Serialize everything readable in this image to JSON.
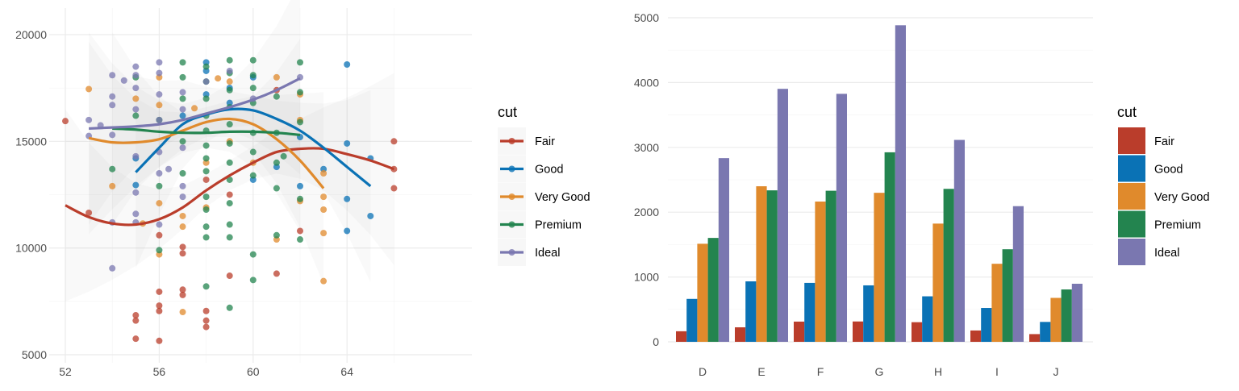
{
  "colors": {
    "Fair": "#BA3D2B",
    "Good": "#0A72B5",
    "Very Good": "#E08A2C",
    "Premium": "#23844F",
    "Ideal": "#7A77B0"
  },
  "chart_data": [
    {
      "type": "scatter",
      "title": "",
      "xlabel": "",
      "ylabel": "",
      "xlim": [
        51.6,
        66.4
      ],
      "ylim": [
        5000,
        21200
      ],
      "xticks": [
        "52",
        "56",
        "60",
        "64"
      ],
      "yticks": [
        "5000",
        "10000",
        "15000",
        "20000"
      ],
      "grid": true,
      "smooth": true,
      "confidence_band": true,
      "legend": {
        "title": "cut",
        "position": "right",
        "entries": [
          "Fair",
          "Good",
          "Very Good",
          "Premium",
          "Ideal"
        ]
      },
      "points": [
        [
          52,
          15950,
          "Fair"
        ],
        [
          53,
          11650,
          "Fair"
        ],
        [
          55,
          6850,
          "Fair"
        ],
        [
          55,
          6600,
          "Fair"
        ],
        [
          55,
          5750,
          "Fair"
        ],
        [
          56,
          10600,
          "Fair"
        ],
        [
          56,
          7950,
          "Fair"
        ],
        [
          56,
          7300,
          "Fair"
        ],
        [
          56,
          7050,
          "Fair"
        ],
        [
          56,
          5650,
          "Fair"
        ],
        [
          57,
          10050,
          "Fair"
        ],
        [
          57,
          9750,
          "Fair"
        ],
        [
          57,
          8050,
          "Fair"
        ],
        [
          57,
          7800,
          "Fair"
        ],
        [
          58,
          13200,
          "Fair"
        ],
        [
          58,
          7050,
          "Fair"
        ],
        [
          58,
          6600,
          "Fair"
        ],
        [
          58,
          6300,
          "Fair"
        ],
        [
          59,
          12500,
          "Fair"
        ],
        [
          59,
          8700,
          "Fair"
        ],
        [
          61,
          17400,
          "Fair"
        ],
        [
          61,
          8800,
          "Fair"
        ],
        [
          62,
          10800,
          "Fair"
        ],
        [
          66,
          15000,
          "Fair"
        ],
        [
          66,
          13700,
          "Fair"
        ],
        [
          66,
          12800,
          "Fair"
        ],
        [
          55,
          12950,
          "Good"
        ],
        [
          55,
          14200,
          "Good"
        ],
        [
          57,
          16200,
          "Good"
        ],
        [
          58,
          18700,
          "Good"
        ],
        [
          58,
          18300,
          "Good"
        ],
        [
          58,
          17200,
          "Good"
        ],
        [
          59,
          17500,
          "Good"
        ],
        [
          59,
          16800,
          "Good"
        ],
        [
          60,
          18000,
          "Good"
        ],
        [
          60,
          13200,
          "Good"
        ],
        [
          61,
          13800,
          "Good"
        ],
        [
          62,
          15200,
          "Good"
        ],
        [
          62,
          12900,
          "Good"
        ],
        [
          63,
          13700,
          "Good"
        ],
        [
          64,
          18600,
          "Good"
        ],
        [
          64,
          14900,
          "Good"
        ],
        [
          64,
          12300,
          "Good"
        ],
        [
          64,
          10800,
          "Good"
        ],
        [
          65,
          11500,
          "Good"
        ],
        [
          65,
          14200,
          "Good"
        ],
        [
          53,
          17450,
          "Very Good"
        ],
        [
          54,
          12900,
          "Very Good"
        ],
        [
          55,
          17000,
          "Very Good"
        ],
        [
          55.3,
          11150,
          "Very Good"
        ],
        [
          56,
          16700,
          "Very Good"
        ],
        [
          56,
          18000,
          "Very Good"
        ],
        [
          56,
          12100,
          "Very Good"
        ],
        [
          56,
          9700,
          "Very Good"
        ],
        [
          57,
          11500,
          "Very Good"
        ],
        [
          57,
          11000,
          "Very Good"
        ],
        [
          57,
          7000,
          "Very Good"
        ],
        [
          58,
          14000,
          "Very Good"
        ],
        [
          58,
          11900,
          "Very Good"
        ],
        [
          58.5,
          17950,
          "Very Good"
        ],
        [
          57.5,
          16550,
          "Very Good"
        ],
        [
          59,
          15000,
          "Very Good"
        ],
        [
          59,
          17800,
          "Very Good"
        ],
        [
          60,
          14000,
          "Very Good"
        ],
        [
          61,
          18000,
          "Very Good"
        ],
        [
          61,
          10400,
          "Very Good"
        ],
        [
          62,
          17200,
          "Very Good"
        ],
        [
          62,
          12200,
          "Very Good"
        ],
        [
          62,
          16000,
          "Very Good"
        ],
        [
          63,
          13500,
          "Very Good"
        ],
        [
          63,
          12400,
          "Very Good"
        ],
        [
          63,
          11800,
          "Very Good"
        ],
        [
          63,
          10700,
          "Very Good"
        ],
        [
          63,
          8450,
          "Very Good"
        ],
        [
          54,
          13700,
          "Premium"
        ],
        [
          55,
          16200,
          "Premium"
        ],
        [
          55,
          18000,
          "Premium"
        ],
        [
          56,
          12900,
          "Premium"
        ],
        [
          56,
          9900,
          "Premium"
        ],
        [
          56,
          16000,
          "Premium"
        ],
        [
          57,
          18700,
          "Premium"
        ],
        [
          57,
          18000,
          "Premium"
        ],
        [
          57,
          17000,
          "Premium"
        ],
        [
          57,
          15000,
          "Premium"
        ],
        [
          57,
          13500,
          "Premium"
        ],
        [
          58,
          18500,
          "Premium"
        ],
        [
          58,
          17800,
          "Premium"
        ],
        [
          58,
          17000,
          "Premium"
        ],
        [
          58,
          16200,
          "Premium"
        ],
        [
          58,
          15500,
          "Premium"
        ],
        [
          58,
          14800,
          "Premium"
        ],
        [
          58,
          14200,
          "Premium"
        ],
        [
          58,
          13600,
          "Premium"
        ],
        [
          58,
          12400,
          "Premium"
        ],
        [
          58,
          11800,
          "Premium"
        ],
        [
          58,
          11000,
          "Premium"
        ],
        [
          58,
          10500,
          "Premium"
        ],
        [
          58,
          8200,
          "Premium"
        ],
        [
          59,
          18800,
          "Premium"
        ],
        [
          59,
          18200,
          "Premium"
        ],
        [
          59,
          17400,
          "Premium"
        ],
        [
          59,
          16600,
          "Premium"
        ],
        [
          59,
          15800,
          "Premium"
        ],
        [
          59,
          14900,
          "Premium"
        ],
        [
          59,
          14000,
          "Premium"
        ],
        [
          59,
          13200,
          "Premium"
        ],
        [
          59,
          12100,
          "Premium"
        ],
        [
          59,
          11100,
          "Premium"
        ],
        [
          59,
          10500,
          "Premium"
        ],
        [
          59,
          7200,
          "Premium"
        ],
        [
          60,
          18800,
          "Premium"
        ],
        [
          60,
          18100,
          "Premium"
        ],
        [
          60,
          17500,
          "Premium"
        ],
        [
          60,
          16800,
          "Premium"
        ],
        [
          60,
          15400,
          "Premium"
        ],
        [
          60,
          14500,
          "Premium"
        ],
        [
          60,
          13400,
          "Premium"
        ],
        [
          60,
          9700,
          "Premium"
        ],
        [
          60,
          8500,
          "Premium"
        ],
        [
          61,
          17100,
          "Premium"
        ],
        [
          61,
          15400,
          "Premium"
        ],
        [
          61,
          14000,
          "Premium"
        ],
        [
          61,
          12800,
          "Premium"
        ],
        [
          61,
          10600,
          "Premium"
        ],
        [
          61.3,
          14300,
          "Premium"
        ],
        [
          62,
          18700,
          "Premium"
        ],
        [
          62,
          17300,
          "Premium"
        ],
        [
          62,
          15900,
          "Premium"
        ],
        [
          62,
          12300,
          "Premium"
        ],
        [
          62,
          10400,
          "Premium"
        ],
        [
          53,
          16000,
          "Ideal"
        ],
        [
          53,
          15250,
          "Ideal"
        ],
        [
          54,
          18100,
          "Ideal"
        ],
        [
          54,
          17100,
          "Ideal"
        ],
        [
          54,
          16700,
          "Ideal"
        ],
        [
          54,
          15300,
          "Ideal"
        ],
        [
          54,
          11200,
          "Ideal"
        ],
        [
          54,
          9050,
          "Ideal"
        ],
        [
          54.5,
          17850,
          "Ideal"
        ],
        [
          53.5,
          15750,
          "Ideal"
        ],
        [
          55,
          18500,
          "Ideal"
        ],
        [
          55,
          18100,
          "Ideal"
        ],
        [
          55,
          17500,
          "Ideal"
        ],
        [
          55,
          16500,
          "Ideal"
        ],
        [
          55,
          14300,
          "Ideal"
        ],
        [
          55,
          12600,
          "Ideal"
        ],
        [
          55,
          11600,
          "Ideal"
        ],
        [
          55,
          11200,
          "Ideal"
        ],
        [
          56,
          18700,
          "Ideal"
        ],
        [
          56,
          18200,
          "Ideal"
        ],
        [
          56,
          17200,
          "Ideal"
        ],
        [
          56,
          16000,
          "Ideal"
        ],
        [
          56,
          14500,
          "Ideal"
        ],
        [
          56,
          13500,
          "Ideal"
        ],
        [
          56,
          11100,
          "Ideal"
        ],
        [
          56.4,
          13700,
          "Ideal"
        ],
        [
          57,
          17300,
          "Ideal"
        ],
        [
          57,
          16500,
          "Ideal"
        ],
        [
          57,
          14700,
          "Ideal"
        ],
        [
          57,
          12900,
          "Ideal"
        ],
        [
          57,
          12400,
          "Ideal"
        ],
        [
          58,
          17800,
          "Ideal"
        ],
        [
          59,
          18300,
          "Ideal"
        ],
        [
          60,
          17000,
          "Ideal"
        ],
        [
          62,
          18000,
          "Ideal"
        ]
      ],
      "smooth_lines": {
        "Fair": [
          [
            52,
            12000
          ],
          [
            53,
            11450
          ],
          [
            54,
            11150
          ],
          [
            55,
            11100
          ],
          [
            56,
            11350
          ],
          [
            57,
            11900
          ],
          [
            58,
            12700
          ],
          [
            59,
            13400
          ],
          [
            60,
            14000
          ],
          [
            61,
            14500
          ],
          [
            62,
            14650
          ],
          [
            63,
            14650
          ],
          [
            64,
            14400
          ],
          [
            65,
            14100
          ],
          [
            66,
            13700
          ]
        ],
        "Good": [
          [
            55,
            13550
          ],
          [
            56,
            14700
          ],
          [
            57,
            15800
          ],
          [
            58,
            16250
          ],
          [
            59,
            16500
          ],
          [
            60,
            16450
          ],
          [
            61,
            16050
          ],
          [
            62,
            15500
          ],
          [
            63,
            14700
          ],
          [
            64,
            13800
          ],
          [
            65,
            12900
          ]
        ],
        "Very Good": [
          [
            53,
            15150
          ],
          [
            54,
            14950
          ],
          [
            55,
            14950
          ],
          [
            56,
            15100
          ],
          [
            57,
            15500
          ],
          [
            58,
            15900
          ],
          [
            59,
            16050
          ],
          [
            60,
            15800
          ],
          [
            61,
            15100
          ],
          [
            62,
            14100
          ],
          [
            63,
            12800
          ]
        ],
        "Premium": [
          [
            54,
            15600
          ],
          [
            55,
            15550
          ],
          [
            56,
            15450
          ],
          [
            57,
            15400
          ],
          [
            58,
            15400
          ],
          [
            59,
            15450
          ],
          [
            60,
            15450
          ],
          [
            61,
            15400
          ],
          [
            62,
            15300
          ]
        ],
        "Ideal": [
          [
            53,
            15600
          ],
          [
            54,
            15650
          ],
          [
            55,
            15700
          ],
          [
            56,
            15800
          ],
          [
            57,
            16000
          ],
          [
            58,
            16300
          ],
          [
            59,
            16600
          ],
          [
            60,
            16950
          ],
          [
            61,
            17400
          ],
          [
            62,
            17950
          ]
        ]
      }
    },
    {
      "type": "bar",
      "title": "",
      "xlabel": "",
      "ylabel": "",
      "ylim": [
        0,
        5000
      ],
      "yticks": [
        "0",
        "1000",
        "2000",
        "3000",
        "4000",
        "5000"
      ],
      "grid": true,
      "categories": [
        "D",
        "E",
        "F",
        "G",
        "H",
        "I",
        "J"
      ],
      "legend": {
        "title": "cut",
        "position": "right"
      },
      "series": [
        {
          "name": "Fair",
          "values": [
            163,
            224,
            312,
            314,
            303,
            175,
            119
          ]
        },
        {
          "name": "Good",
          "values": [
            662,
            933,
            909,
            871,
            702,
            522,
            307
          ]
        },
        {
          "name": "Very Good",
          "values": [
            1513,
            2400,
            2164,
            2299,
            1824,
            1204,
            678
          ]
        },
        {
          "name": "Premium",
          "values": [
            1603,
            2337,
            2331,
            2924,
            2360,
            1428,
            808
          ]
        },
        {
          "name": "Ideal",
          "values": [
            2834,
            3903,
            3826,
            4884,
            3115,
            2093,
            896
          ]
        }
      ]
    }
  ]
}
